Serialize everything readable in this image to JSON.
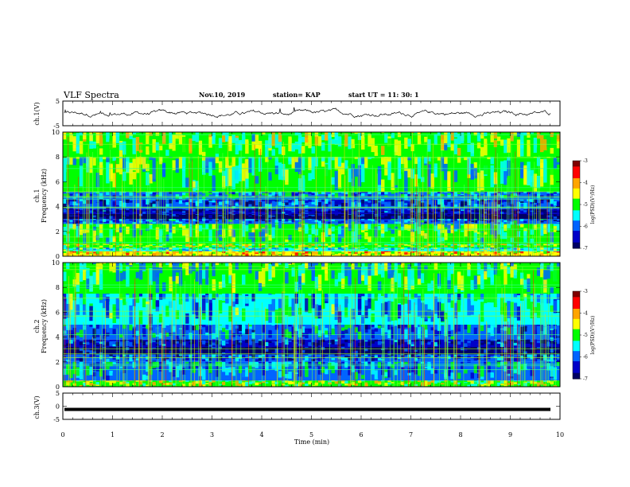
{
  "header": {
    "title": "VLF Spectra",
    "date": "Nov.10, 2019",
    "station": "station= KAP",
    "start": "start  UT =   11: 30: 1"
  },
  "colorbar": {
    "label": "log(PSD)(V²/Hz)",
    "ticks": [
      "-3",
      "-4",
      "-5",
      "-6",
      "-7"
    ],
    "colors": [
      "#800000",
      "#ff0000",
      "#ffa500",
      "#ffff00",
      "#00ff00",
      "#00ffff",
      "#0064ff",
      "#0000c8",
      "#000064"
    ]
  },
  "chart_data": [
    {
      "type": "line",
      "panel": "ch1-waveform",
      "ylabel": "ch.1(V)",
      "ylim": [
        -5,
        5
      ],
      "yticks": [
        "5",
        "-5"
      ],
      "description_values": {
        "mean": 0,
        "amplitude_range": [
          -1.5,
          1.5
        ]
      },
      "color": "#000000"
    },
    {
      "type": "heatmap",
      "panel": "ch1-spectrogram",
      "ylabel": "ch.1",
      "ylabel2": "Frequency (kHz)",
      "ylim": [
        0,
        10
      ],
      "yticks": [
        "0",
        "2",
        "4",
        "6",
        "8",
        "10"
      ],
      "bands": [
        {
          "f": [
            0,
            0.4
          ],
          "level": -4.3
        },
        {
          "f": [
            0.4,
            0.7
          ],
          "level": -5.3
        },
        {
          "f": [
            0.7,
            1.0
          ],
          "level": -4.8
        },
        {
          "f": [
            1.0,
            2.6
          ],
          "level": -5.2
        },
        {
          "f": [
            2.6,
            3.0
          ],
          "level": -6.0
        },
        {
          "f": [
            3.0,
            3.4
          ],
          "level": -6.9
        },
        {
          "f": [
            3.4,
            3.8
          ],
          "level": -6.6
        },
        {
          "f": [
            3.8,
            4.6
          ],
          "level": -6.2
        },
        {
          "f": [
            4.6,
            5.2
          ],
          "level": -5.8
        },
        {
          "f": [
            5.2,
            8.0
          ],
          "level": -5.2
        },
        {
          "f": [
            8.0,
            10.0
          ],
          "level": -4.9
        }
      ]
    },
    {
      "type": "heatmap",
      "panel": "ch2-spectrogram",
      "ylabel": "ch.2",
      "ylabel2": "Frequency (kHz)",
      "ylim": [
        0,
        10
      ],
      "yticks": [
        "0",
        "2",
        "4",
        "6",
        "8",
        "10"
      ],
      "bands": [
        {
          "f": [
            0,
            0.5
          ],
          "level": -4.8
        },
        {
          "f": [
            0.5,
            2.0
          ],
          "level": -5.8
        },
        {
          "f": [
            2.0,
            2.6
          ],
          "level": -6.2
        },
        {
          "f": [
            2.6,
            3.2
          ],
          "level": -6.9
        },
        {
          "f": [
            3.2,
            3.8
          ],
          "level": -6.5
        },
        {
          "f": [
            3.8,
            5.0
          ],
          "level": -5.9
        },
        {
          "f": [
            5.0,
            7.5
          ],
          "level": -5.6
        },
        {
          "f": [
            7.5,
            10.0
          ],
          "level": -5.2
        }
      ]
    },
    {
      "type": "line",
      "panel": "ch3-waveform",
      "ylabel": "ch.3(V)",
      "ylim": [
        -5,
        5
      ],
      "yticks": [
        "5",
        "0",
        "-5"
      ],
      "constant_value": -1.2,
      "color": "#000000"
    }
  ],
  "xaxis": {
    "label": "Time (min)",
    "xlim": [
      0,
      10
    ],
    "ticks": [
      "0",
      "1",
      "2",
      "3",
      "4",
      "5",
      "6",
      "7",
      "8",
      "9",
      "10"
    ]
  }
}
